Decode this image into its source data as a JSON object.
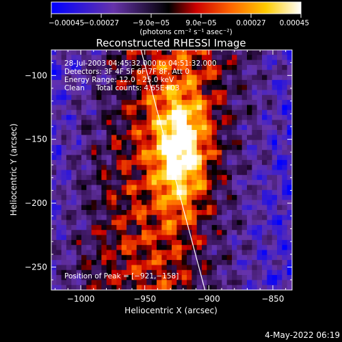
{
  "chart_data": {
    "type": "heatmap",
    "title": "Reconstructed RHESSI Image",
    "xlabel": "Heliocentric X (arcsec)",
    "ylabel": "Heliocentric Y (arcsec)",
    "xlim": [
      -1023,
      -835
    ],
    "ylim": [
      -268,
      -80
    ],
    "x_ticks": [
      -1000,
      -950,
      -900,
      -850
    ],
    "y_ticks": [
      -250,
      -200,
      -150,
      -100
    ],
    "x_tick_labels": [
      "−1000",
      "−950",
      "−900",
      "−850"
    ],
    "y_tick_labels": [
      "−250",
      "−200",
      "−150",
      "−100"
    ],
    "colorbar": {
      "range": [
        -0.00045,
        0.00045
      ],
      "ticks": [
        -0.00045,
        -0.00027,
        -9e-05,
        9e-05,
        0.00027,
        0.00045
      ],
      "tick_labels": [
        "−0.00045",
        "−0.00027",
        "−9.0e−05",
        "9.0e−05",
        "0.00027",
        "0.00045"
      ],
      "unit_label": "(photons cm⁻² s⁻¹ asec⁻²)",
      "colors": [
        "#0000ff",
        "#6633aa",
        "#000000",
        "#cc0000",
        "#ff6600",
        "#ffcc00",
        "#ffffff"
      ]
    },
    "info_lines": [
      "28-Jul-2003 04:45:32.000 to 04:51:32.000",
      "Detectors: 3F 4F 5F 6F 7F 8F, Att 0",
      "Energy Range: 12.0 - 25.0 keV",
      "Clean     Total counts: 4.65E+03"
    ],
    "peak": {
      "label": "Position of Peak = [−921,−158]",
      "x": -921,
      "y": -158
    },
    "limb_line": {
      "x1": -953,
      "y1": -80,
      "x2": -903,
      "y2": -268
    },
    "footer": "4-May-2022 06:19"
  }
}
